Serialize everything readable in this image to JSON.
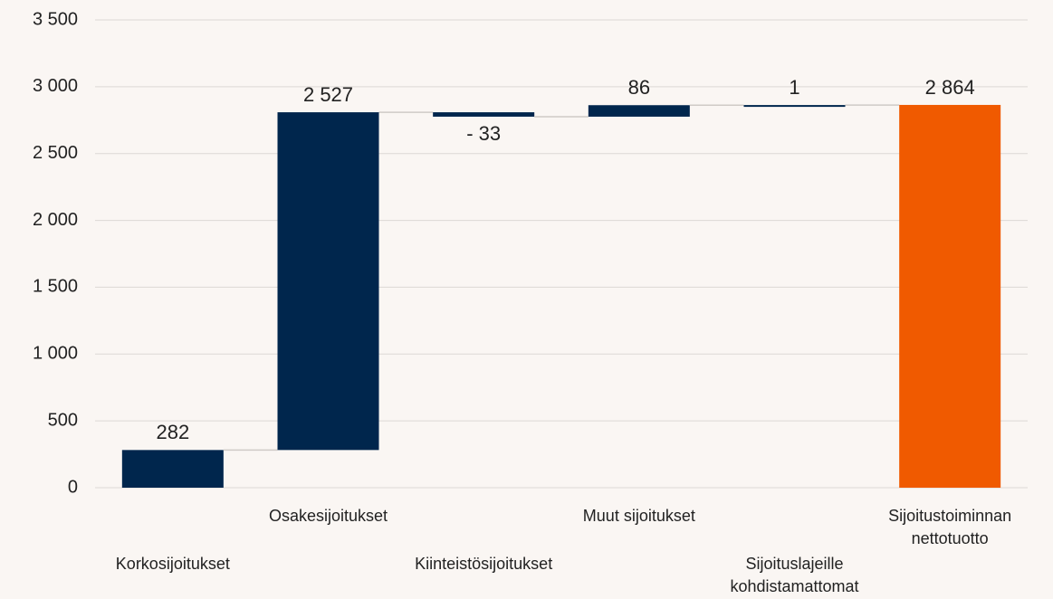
{
  "chart_data": {
    "type": "waterfall",
    "categories": [
      [
        "Korkosijoitukset"
      ],
      [
        "Osakesijoitukset"
      ],
      [
        "Kiinteistösijoitukset"
      ],
      [
        "Muut sijoitukset"
      ],
      [
        "Sijoituslajeille",
        "kohdistamattomat"
      ],
      [
        "Sijoitustoiminnan",
        "nettotuotto"
      ]
    ],
    "values": [
      282,
      2527,
      -33,
      86,
      1,
      2864
    ],
    "value_labels": [
      "282",
      "2 527",
      "- 33",
      "86",
      "1",
      "2 864"
    ],
    "colors": [
      "#00264d",
      "#00264d",
      "#00264d",
      "#00264d",
      "#00264d",
      "#f05a00"
    ],
    "ylim": [
      0,
      3500
    ],
    "yticks": [
      0,
      500,
      {
        "value": 1000,
        "label": "1 000"
      },
      {
        "value": 1500,
        "label": "1 500"
      },
      {
        "value": 2000,
        "label": "2 000"
      },
      {
        "value": 2500,
        "label": "2 500"
      },
      {
        "value": 3000,
        "label": "3 000"
      },
      {
        "value": 3500,
        "label": "3 500"
      }
    ],
    "grid": true
  }
}
